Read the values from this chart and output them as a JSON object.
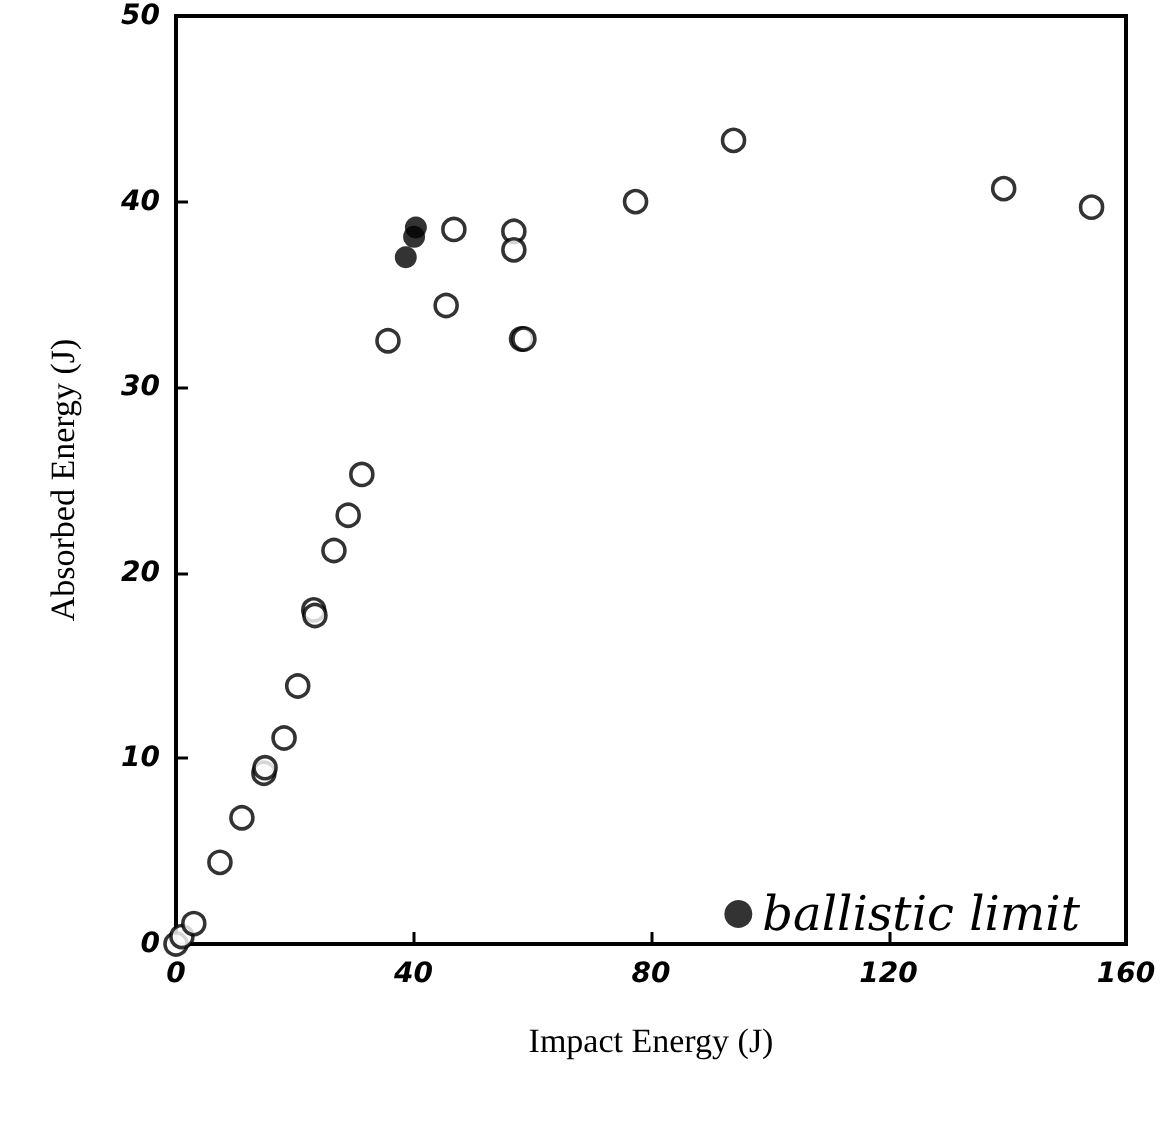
{
  "chart_data": {
    "type": "scatter",
    "xlabel": "Impact Energy (J)",
    "ylabel": "Absorbed Energy (J)",
    "xlim": [
      0,
      160
    ],
    "xticks": [
      0,
      40,
      80,
      120,
      160
    ],
    "ylim": [
      0,
      50
    ],
    "yticks": [
      0,
      10,
      20,
      30,
      40,
      50
    ],
    "grid": false,
    "legend": "bottom right",
    "marker": "circle",
    "series": [
      {
        "color": "#000000",
        "x": [
          0,
          1,
          3,
          7.4,
          11.1,
          14.8,
          15,
          18.2,
          20.5,
          23.2,
          23.4,
          26.6,
          29,
          31.3,
          35.7,
          45.5,
          46.8,
          56.9,
          56.9,
          58.2,
          58.6,
          77.4,
          93.9,
          139.4,
          154.2
        ],
        "values": [
          0,
          0.4,
          1.1,
          4.4,
          6.8,
          9.2,
          9.5,
          11.1,
          13.9,
          18,
          17.7,
          21.2,
          23.1,
          25.3,
          32.5,
          34.4,
          38.5,
          38.4,
          37.4,
          32.6,
          32.6,
          40,
          43.3,
          40.7,
          39.7
        ]
      },
      {
        "name": "ballistic limit",
        "color": "#000000",
        "x": [
          38.7,
          40.1,
          40.4
        ],
        "values": [
          37,
          38.1,
          38.6
        ]
      }
    ]
  }
}
